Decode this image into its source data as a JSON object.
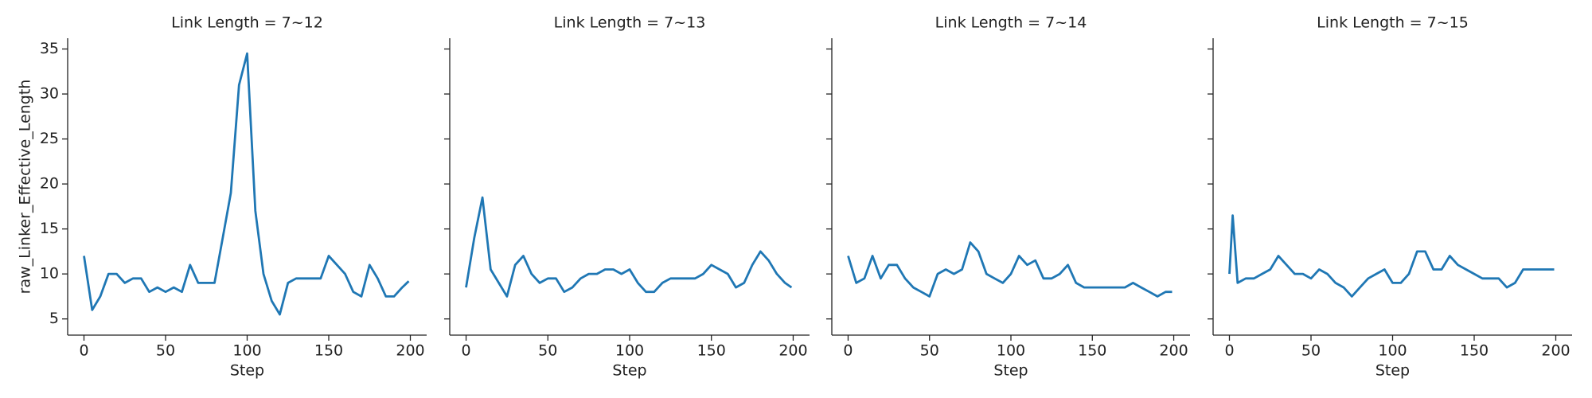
{
  "chart_data": [
    {
      "type": "line",
      "title": "Link Length = 7~12",
      "xlabel": "Step",
      "ylabel": "raw_Linker_Effective_Length",
      "x": [
        0,
        5,
        10,
        15,
        20,
        25,
        30,
        35,
        40,
        45,
        50,
        55,
        60,
        65,
        70,
        75,
        80,
        85,
        90,
        95,
        100,
        105,
        110,
        115,
        120,
        125,
        130,
        135,
        140,
        145,
        150,
        155,
        160,
        165,
        170,
        175,
        180,
        185,
        190,
        195,
        199
      ],
      "values": [
        12,
        6,
        7.5,
        10,
        10,
        9,
        9.5,
        9.5,
        8,
        8.5,
        8,
        8.5,
        8,
        11,
        9,
        9,
        9,
        14,
        19,
        31,
        34.5,
        17,
        10,
        7,
        5.5,
        9,
        9.5,
        9.5,
        9.5,
        9.5,
        12,
        11,
        10,
        8,
        7.5,
        11,
        9.5,
        7.5,
        7.5,
        8.5,
        9.2
      ],
      "color": "#1f77b4",
      "xlim": [
        -10,
        210
      ],
      "ylim": [
        3.2,
        36.2
      ],
      "xticks": [
        0,
        50,
        100,
        150,
        200
      ],
      "yticks": [
        5,
        10,
        15,
        20,
        25,
        30,
        35
      ]
    },
    {
      "type": "line",
      "title": "Link Length = 7~13",
      "xlabel": "Step",
      "x": [
        0,
        5,
        10,
        15,
        20,
        25,
        30,
        35,
        40,
        45,
        50,
        55,
        60,
        65,
        70,
        75,
        80,
        85,
        90,
        95,
        100,
        105,
        110,
        115,
        120,
        125,
        130,
        135,
        140,
        145,
        150,
        155,
        160,
        165,
        170,
        175,
        180,
        185,
        190,
        195,
        199
      ],
      "values": [
        8.5,
        14,
        18.5,
        10.5,
        9,
        7.5,
        11,
        12,
        10,
        9,
        9.5,
        9.5,
        8,
        8.5,
        9.5,
        10,
        10,
        10.5,
        10.5,
        10,
        10.5,
        9,
        8,
        8,
        9,
        9.5,
        9.5,
        9.5,
        9.5,
        10,
        11,
        10.5,
        10,
        8.5,
        9,
        11,
        12.5,
        11.5,
        10,
        9,
        8.5
      ],
      "color": "#1f77b4",
      "xlim": [
        -10,
        210
      ],
      "ylim": [
        3.2,
        36.2
      ],
      "xticks": [
        0,
        50,
        100,
        150,
        200
      ],
      "yticks": [
        5,
        10,
        15,
        20,
        25,
        30,
        35
      ]
    },
    {
      "type": "line",
      "title": "Link Length = 7~14",
      "xlabel": "Step",
      "x": [
        0,
        5,
        10,
        15,
        20,
        25,
        30,
        35,
        40,
        45,
        50,
        55,
        60,
        65,
        70,
        75,
        80,
        85,
        90,
        95,
        100,
        105,
        110,
        115,
        120,
        125,
        130,
        135,
        140,
        145,
        150,
        155,
        160,
        165,
        170,
        175,
        180,
        185,
        190,
        195,
        199
      ],
      "values": [
        12,
        9,
        9.5,
        12,
        9.5,
        11,
        11,
        9.5,
        8.5,
        8,
        7.5,
        10,
        10.5,
        10,
        10.5,
        13.5,
        12.5,
        10,
        9.5,
        9,
        10,
        12,
        11,
        11.5,
        9.5,
        9.5,
        10,
        11,
        9,
        8.5,
        8.5,
        8.5,
        8.5,
        8.5,
        8.5,
        9,
        8.5,
        8,
        7.5,
        8,
        8
      ],
      "color": "#1f77b4",
      "xlim": [
        -10,
        210
      ],
      "ylim": [
        3.2,
        36.2
      ],
      "xticks": [
        0,
        50,
        100,
        150,
        200
      ],
      "yticks": [
        5,
        10,
        15,
        20,
        25,
        30,
        35
      ]
    },
    {
      "type": "line",
      "title": "Link Length = 7~15",
      "xlabel": "Step",
      "x": [
        0,
        2,
        5,
        10,
        15,
        20,
        25,
        30,
        35,
        40,
        45,
        50,
        55,
        60,
        65,
        70,
        75,
        80,
        85,
        90,
        95,
        100,
        105,
        110,
        115,
        120,
        125,
        130,
        135,
        140,
        145,
        150,
        155,
        160,
        165,
        170,
        175,
        180,
        185,
        190,
        195,
        199
      ],
      "values": [
        10,
        16.5,
        9,
        9.5,
        9.5,
        10,
        10.5,
        12,
        11,
        10,
        10,
        9.5,
        10.5,
        10,
        9,
        8.5,
        7.5,
        8.5,
        9.5,
        10,
        10.5,
        9,
        9,
        10,
        12.5,
        12.5,
        10.5,
        10.5,
        12,
        11,
        10.5,
        10,
        9.5,
        9.5,
        9.5,
        8.5,
        9,
        10.5,
        10.5,
        10.5,
        10.5,
        10.5
      ],
      "color": "#1f77b4",
      "xlim": [
        -10,
        210
      ],
      "ylim": [
        3.2,
        36.2
      ],
      "xticks": [
        0,
        50,
        100,
        150,
        200
      ],
      "yticks": [
        5,
        10,
        15,
        20,
        25,
        30,
        35
      ]
    }
  ]
}
